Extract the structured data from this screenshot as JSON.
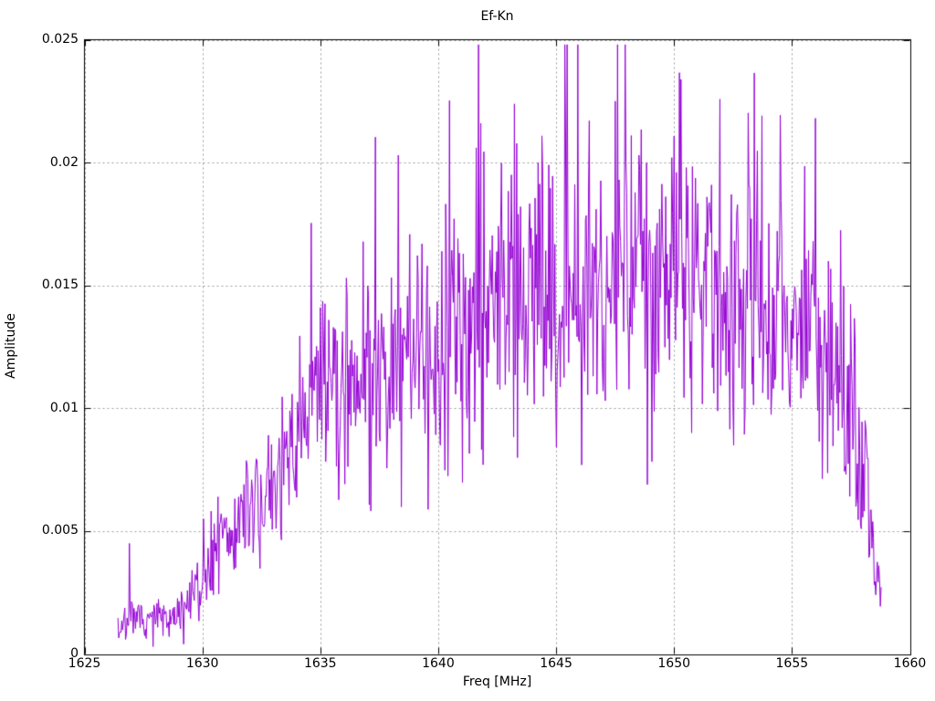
{
  "figure": {
    "background": "#ffffff",
    "frame_color": "#000000",
    "text_color": "#000000"
  },
  "chart_data": {
    "type": "line",
    "title": "Ef-Kn",
    "xlabel": "Freq [MHz]",
    "ylabel": "Amplitude",
    "xlim": [
      1625,
      1660
    ],
    "ylim": [
      0,
      0.025
    ],
    "xticks": {
      "values": [
        1625,
        1630,
        1635,
        1640,
        1645,
        1650,
        1655,
        1660
      ],
      "labels": [
        "1625",
        "1630",
        "1635",
        "1640",
        "1645",
        "1650",
        "1655",
        "1660"
      ]
    },
    "yticks": {
      "values": [
        0,
        0.005,
        0.01,
        0.015,
        0.02,
        0.025
      ],
      "labels": [
        "0",
        "0.005",
        "0.01",
        "0.015",
        "0.02",
        "0.025"
      ]
    },
    "grid": {
      "on": true,
      "color": "#9b9b9b",
      "dash": [
        2,
        3
      ]
    },
    "legend": "none",
    "series": [
      {
        "name": "Ef-Kn",
        "color": "#9400d3",
        "line_width": 1,
        "x_start": 1626.42,
        "x_end": 1658.78,
        "n_points": 1000,
        "seed": 7,
        "envelope": [
          [
            1626.42,
            0.0011
          ],
          [
            1627.0,
            0.0013
          ],
          [
            1628.0,
            0.0014
          ],
          [
            1629.0,
            0.0016
          ],
          [
            1629.5,
            0.0021
          ],
          [
            1630.0,
            0.003
          ],
          [
            1630.5,
            0.0038
          ],
          [
            1631.0,
            0.0045
          ],
          [
            1631.5,
            0.005
          ],
          [
            1632.0,
            0.0058
          ],
          [
            1632.5,
            0.0062
          ],
          [
            1633.0,
            0.0068
          ],
          [
            1633.5,
            0.0078
          ],
          [
            1634.0,
            0.0088
          ],
          [
            1634.5,
            0.0098
          ],
          [
            1635.0,
            0.0105
          ],
          [
            1636.0,
            0.011
          ],
          [
            1637.0,
            0.0118
          ],
          [
            1638.0,
            0.0122
          ],
          [
            1639.0,
            0.0125
          ],
          [
            1640.0,
            0.013
          ],
          [
            1641.0,
            0.0135
          ],
          [
            1642.0,
            0.014
          ],
          [
            1643.0,
            0.0143
          ],
          [
            1644.0,
            0.0143
          ],
          [
            1645.0,
            0.0148
          ],
          [
            1646.0,
            0.0145
          ],
          [
            1647.0,
            0.015
          ],
          [
            1648.0,
            0.0152
          ],
          [
            1649.0,
            0.0149
          ],
          [
            1650.0,
            0.0153
          ],
          [
            1651.0,
            0.015
          ],
          [
            1652.0,
            0.0146
          ],
          [
            1653.0,
            0.0142
          ],
          [
            1654.0,
            0.0137
          ],
          [
            1655.0,
            0.0132
          ],
          [
            1656.0,
            0.0127
          ],
          [
            1656.5,
            0.012
          ],
          [
            1657.0,
            0.011
          ],
          [
            1657.5,
            0.0092
          ],
          [
            1658.0,
            0.0078
          ],
          [
            1658.4,
            0.0045
          ],
          [
            1658.78,
            0.0024
          ]
        ],
        "noise": {
          "scale_rel": 0.5,
          "scale_abs": 0.0004,
          "spike_prob": 0.025,
          "spike_gain": [
            1.3,
            1.8
          ],
          "dip_prob": 0.025,
          "dip_gain": [
            0.45,
            0.65
          ],
          "clamp": [
            0.00015,
            0.0248
          ]
        },
        "peaks": [
          [
            1626.9,
            0.0045
          ],
          [
            1635.0,
            0.0141
          ],
          [
            1636.1,
            0.0153
          ],
          [
            1638.3,
            0.0203
          ],
          [
            1641.6,
            0.0206
          ],
          [
            1641.8,
            0.0216
          ],
          [
            1643.1,
            0.0195
          ],
          [
            1645.4,
            0.021
          ],
          [
            1646.4,
            0.0217
          ],
          [
            1647.5,
            0.0225
          ],
          [
            1648.2,
            0.0211
          ],
          [
            1648.5,
            0.0203
          ],
          [
            1649.9,
            0.0202
          ],
          [
            1650.1,
            0.0196
          ],
          [
            1651.4,
            0.0186
          ],
          [
            1653.2,
            0.019
          ],
          [
            1655.9,
            0.0168
          ],
          [
            1658.1,
            0.0095
          ]
        ],
        "dips": [
          [
            1627.9,
            0.0003
          ],
          [
            1629.2,
            0.0004
          ],
          [
            1641.9,
            0.0077
          ],
          [
            1647.0,
            0.0107
          ],
          [
            1652.9,
            0.0108
          ],
          [
            1656.1,
            0.0099
          ]
        ]
      }
    ]
  }
}
